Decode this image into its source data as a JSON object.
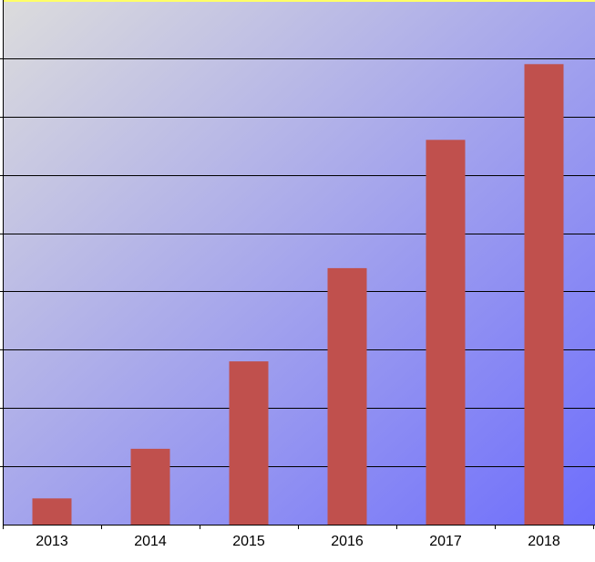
{
  "chart_data": {
    "type": "bar",
    "categories": [
      "2013",
      "2014",
      "2015",
      "2016",
      "2017",
      "2018"
    ],
    "values": [
      0.45,
      1.3,
      2.8,
      4.4,
      6.6,
      7.9
    ],
    "ylim": [
      0,
      9
    ],
    "grid": true,
    "legend": "none",
    "title": "",
    "xlabel": "",
    "ylabel": ""
  },
  "colors": {
    "bar": "#c0504d",
    "background_start": "#dcdcdc",
    "background_end": "#6e6efc",
    "gridline": "#000000",
    "top_border": "#ffff66"
  }
}
